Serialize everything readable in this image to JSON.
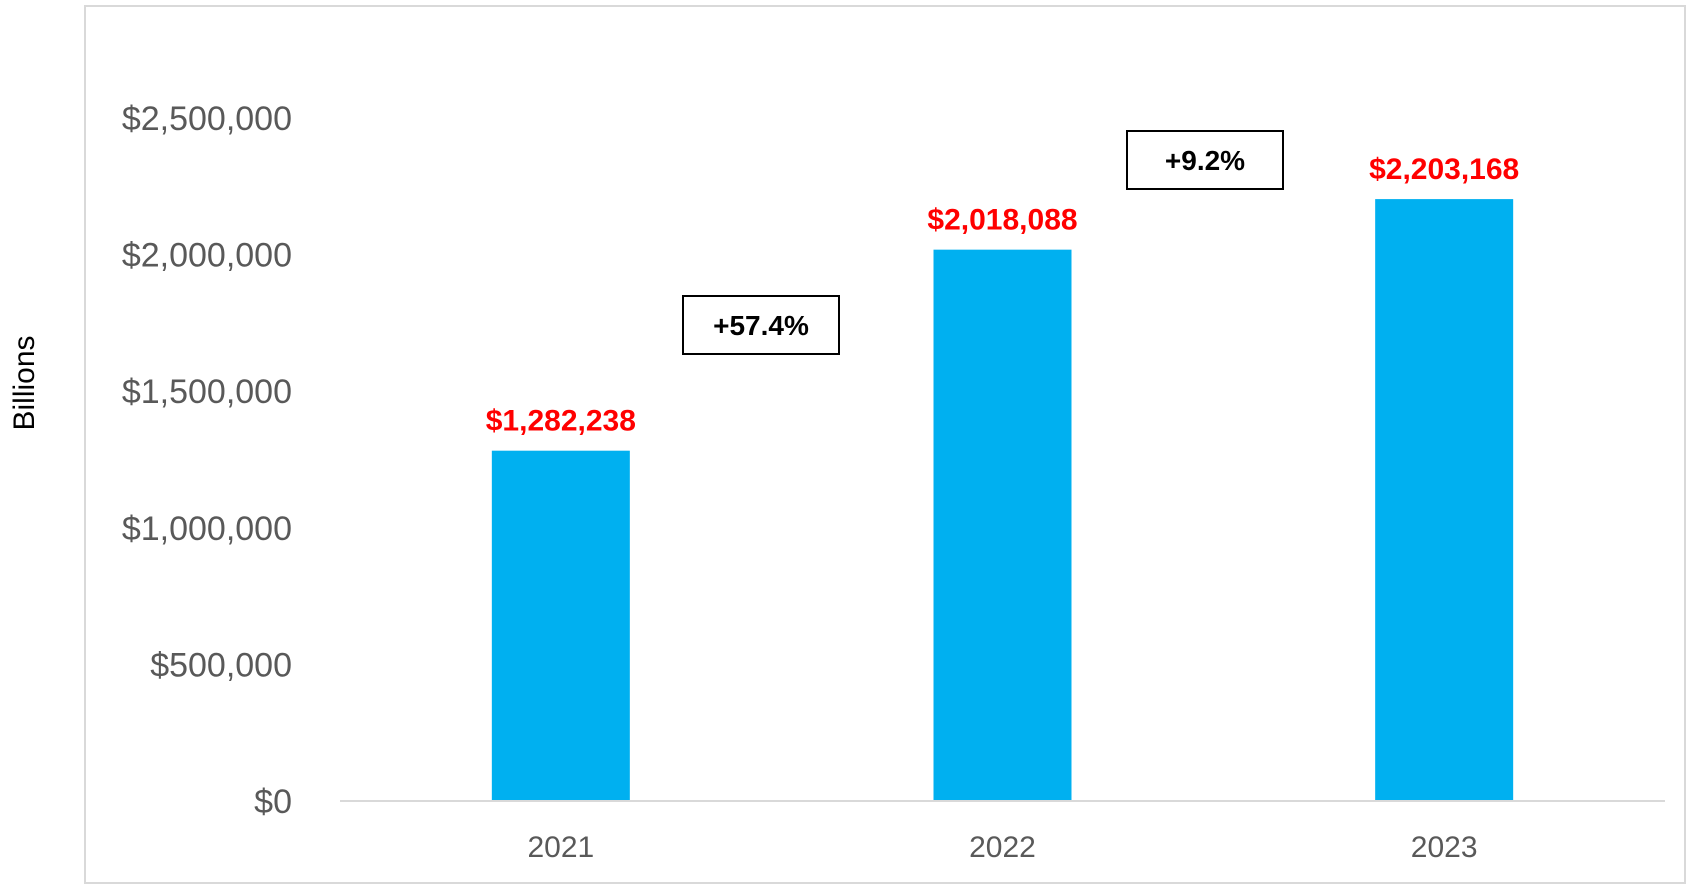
{
  "chart_data": {
    "type": "bar",
    "categories": [
      "2021",
      "2022",
      "2023"
    ],
    "values": [
      1282238,
      2018088,
      2203168
    ],
    "data_labels": [
      "$1,282,238",
      "$2,018,088",
      "$2,203,168"
    ],
    "ylabel": "Billions",
    "ylim": [
      0,
      2500000
    ],
    "yticks": [
      0,
      500000,
      1000000,
      1500000,
      2000000,
      2500000
    ],
    "ytick_labels": [
      "$0",
      "$500,000",
      "$1,000,000",
      "$1,500,000",
      "$2,000,000",
      "$2,500,000"
    ],
    "grid": false,
    "legend": "none",
    "annotations": [
      {
        "text": "+57.4%",
        "between": [
          "2021",
          "2022"
        ]
      },
      {
        "text": "+9.2%",
        "between": [
          "2022",
          "2023"
        ]
      }
    ],
    "colors": {
      "bar": "#00B0F0",
      "data_label": "#FF0000",
      "tick_text": "#595959",
      "axis_line": "#D9D9D9",
      "frame": "#D9D9D9"
    }
  }
}
